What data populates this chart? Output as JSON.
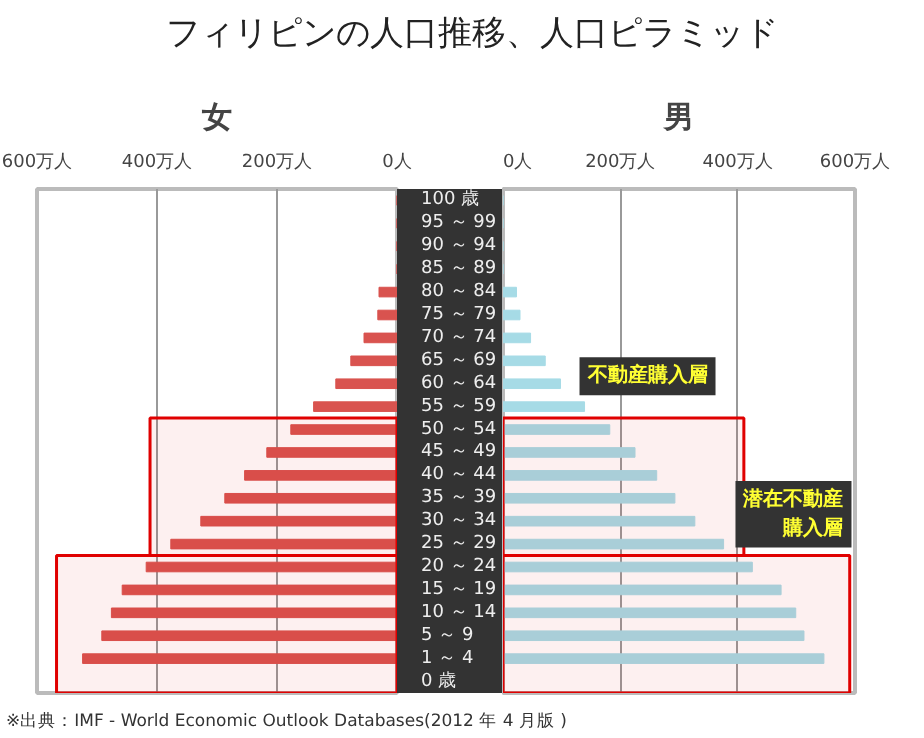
{
  "chart_data": [
    {
      "type": "bar",
      "orientation": "horizontal",
      "title": "フィリピンの人口推移、人口ピラミッド",
      "xlabel": "女",
      "categories": [
        "100 歳",
        "95 ～ 99",
        "90 ～ 94",
        "85 ～ 89",
        "80 ～ 84",
        "75 ～ 79",
        "70 ～ 74",
        "65 ～ 69",
        "60 ～ 64",
        "55 ～ 59",
        "50 ～ 54",
        "45 ～ 49",
        "40 ～ 44",
        "35 ～ 39",
        "30 ～ 34",
        "25 ～ 29",
        "20 ～ 24",
        "15 ～ 19",
        "10 ～ 14",
        "5 ～ 9",
        "1 ～ 4",
        "0 歳"
      ],
      "series": [
        {
          "color": "#d9534f",
          "values": [
            0,
            0,
            0,
            0,
            30,
            32,
            55,
            77,
            102,
            139,
            177,
            217,
            254,
            287,
            327,
            377,
            418,
            458,
            476,
            492,
            524,
            null
          ]
        }
      ],
      "xlim": [
        600,
        0
      ],
      "xticks": [
        {
          "value": 600,
          "label": "600万人"
        },
        {
          "value": 400,
          "label": "400万人"
        },
        {
          "value": 200,
          "label": "200万人"
        },
        {
          "value": 0,
          "label": "0人"
        }
      ],
      "grid": "x",
      "bands": [
        {
          "axis": "y",
          "from": "50 ～ 54",
          "to": "25 ～ 29",
          "color": "#e00000"
        },
        {
          "axis": "y",
          "from": "20 ～ 24",
          "to": "0 歳",
          "color": "#e00000"
        }
      ],
      "annotations": [
        "※出典：IMF - World Economic Outlook Databases(2012 年 4 月版 )"
      ]
    },
    {
      "type": "bar",
      "orientation": "horizontal",
      "xlabel": "男",
      "tick_labels": "x",
      "categories": [
        "100 歳",
        "95 ～ 99",
        "90 ～ 94",
        "85 ～ 89",
        "80 ～ 84",
        "75 ～ 79",
        "70 ～ 74",
        "65 ～ 69",
        "60 ～ 64",
        "55 ～ 59",
        "50 ～ 54",
        "45 ～ 49",
        "40 ～ 44",
        "35 ～ 39",
        "30 ～ 34",
        "25 ～ 29",
        "20 ～ 24",
        "15 ～ 19",
        "10 ～ 14",
        "5 ～ 9",
        "1 ～ 4",
        "0 歳"
      ],
      "series": [
        {
          "color": "#a6dbe6",
          "values": [
            0,
            0,
            0,
            0,
            23,
            29,
            47,
            72,
            98,
            139,
            182,
            225,
            262,
            293,
            327,
            376,
            425,
            474,
            499,
            513,
            547,
            null
          ]
        }
      ],
      "xlim": [
        0,
        600
      ],
      "xticks": [
        {
          "value": 0,
          "label": "0人"
        },
        {
          "value": 200,
          "label": "200万人"
        },
        {
          "value": 400,
          "label": "400万人"
        },
        {
          "value": 600,
          "label": "600万人"
        }
      ],
      "grid": "x",
      "bands": [
        {
          "axis": "y",
          "from": "50 ～ 54",
          "to": "25 ～ 29",
          "color": "#e00000",
          "label": "不動産購入層"
        },
        {
          "axis": "y",
          "from": "20 ～ 24",
          "to": "0 歳",
          "color": "#e00000",
          "label": "潜在不動産購入層"
        }
      ]
    }
  ]
}
